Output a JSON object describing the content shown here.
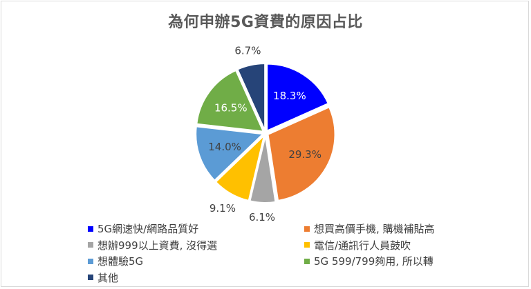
{
  "chart_data": {
    "type": "pie",
    "title": "為何申辦5G資費的原因占比",
    "slices": [
      {
        "name": "5G網速快/網路品質好",
        "value": 18.3,
        "label": "18.3%",
        "color": "#0000ff",
        "label_color": "#ffffff"
      },
      {
        "name": "想買高價手機, 購機補貼高",
        "value": 29.3,
        "label": "29.3%",
        "color": "#ed7d31",
        "label_color": "#404040"
      },
      {
        "name": "想辦999以上資費, 沒得選",
        "value": 6.1,
        "label": "6.1%",
        "color": "#a5a5a5",
        "label_color": "#404040"
      },
      {
        "name": "電信/通訊行人員鼓吹",
        "value": 9.1,
        "label": "9.1%",
        "color": "#ffc000",
        "label_color": "#404040"
      },
      {
        "name": "想體驗5G",
        "value": 14.0,
        "label": "14.0%",
        "color": "#5b9bd5",
        "label_color": "#404040"
      },
      {
        "name": "5G 599/799夠用, 所以轉",
        "value": 16.5,
        "label": "16.5%",
        "color": "#70ad47",
        "label_color": "#ffffff"
      },
      {
        "name": "其他",
        "value": 6.7,
        "label": "6.7%",
        "color": "#264478",
        "label_color": "#404040"
      }
    ],
    "legend_position": "bottom"
  }
}
